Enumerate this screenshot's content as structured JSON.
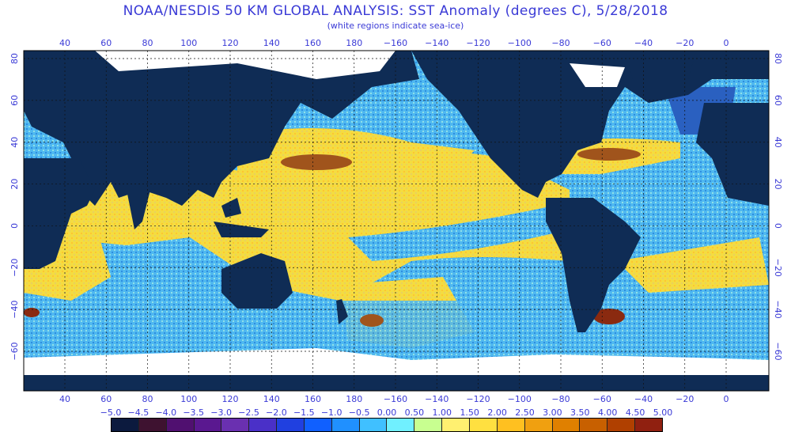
{
  "title": "NOAA/NESDIS 50 KM GLOBAL ANALYSIS: SST Anomaly (degrees C), 5/28/2018",
  "subtitle": "(white regions indicate sea-ice)",
  "lon_labels": [
    "40",
    "60",
    "80",
    "100",
    "120",
    "140",
    "160",
    "180",
    "−160",
    "−140",
    "−120",
    "−100",
    "−80",
    "−60",
    "−40",
    "−20",
    "0"
  ],
  "lat_labels": [
    "80",
    "60",
    "40",
    "20",
    "0",
    "−20",
    "−40",
    "−60"
  ],
  "legend": {
    "values": [
      "−5.0",
      "−4.5",
      "−4.0",
      "−3.5",
      "−3.0",
      "−2.5",
      "−2.0",
      "−1.5",
      "−1.0",
      "−0.5",
      "0.00",
      "0.50",
      "1.00",
      "1.50",
      "2.00",
      "2.50",
      "3.00",
      "3.50",
      "4.00",
      "4.50",
      "5.00"
    ],
    "colors": [
      "#0c1a3e",
      "#3e1230",
      "#501070",
      "#5a1890",
      "#6a30b0",
      "#4a30c8",
      "#2040e0",
      "#1060ff",
      "#2090ff",
      "#40c0ff",
      "#70f0ff",
      "#c8ff90",
      "#fff070",
      "#ffe040",
      "#ffc020",
      "#f0a010",
      "#e08000",
      "#c86000",
      "#b04000",
      "#902010"
    ]
  },
  "colors": {
    "land": "#0f2c55",
    "ice": "#ffffff",
    "label": "#3a3ad6",
    "ocean_warm": "#f4dc40",
    "ocean_cool": "#4fb8f0",
    "ocean_neutral": "#90e0e8"
  }
}
